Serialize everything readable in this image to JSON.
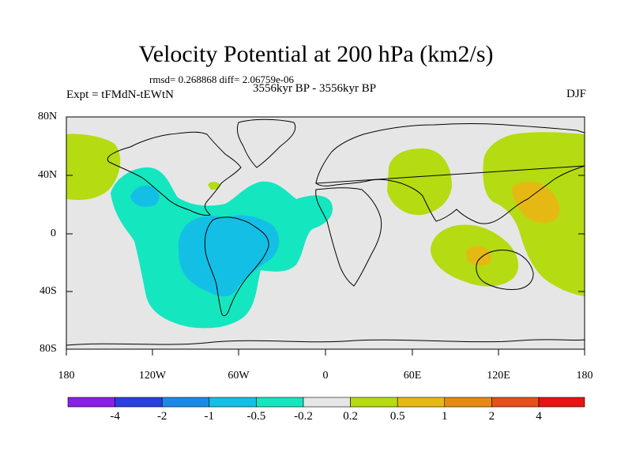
{
  "title": "Velocity Potential at 200 hPa (km2/s)",
  "stats": "rmsd= 0.268868 diff= 2.06759e-06",
  "left_label": "Expt = tFMdN-tEWtN",
  "center_label": "3556kyr BP - 3556kyr BP",
  "right_label": "DJF",
  "lat_labels": [
    "80N",
    "40N",
    "0",
    "40S",
    "80S"
  ],
  "lon_labels": [
    "180",
    "120W",
    "60W",
    "0",
    "60E",
    "120E",
    "180"
  ],
  "colorbar": {
    "labels": [
      "-4",
      "-2",
      "-1",
      "-0.5",
      "-0.2",
      "0.2",
      "0.5",
      "1",
      "2",
      "4"
    ],
    "colors": [
      "#8a1fe6",
      "#2a3fe0",
      "#1b8ae6",
      "#14bfe6",
      "#14e6c0",
      "#e6e6e6",
      "#b5db12",
      "#e6b814",
      "#e68a14",
      "#e6501a",
      "#e61414"
    ]
  },
  "colors": {
    "ocean_neutral": "#e6e6e6",
    "neg_light": "#14e6c0",
    "neg_mid": "#14bfe6",
    "pos_light": "#b5db12",
    "pos_mid": "#e6b814"
  }
}
